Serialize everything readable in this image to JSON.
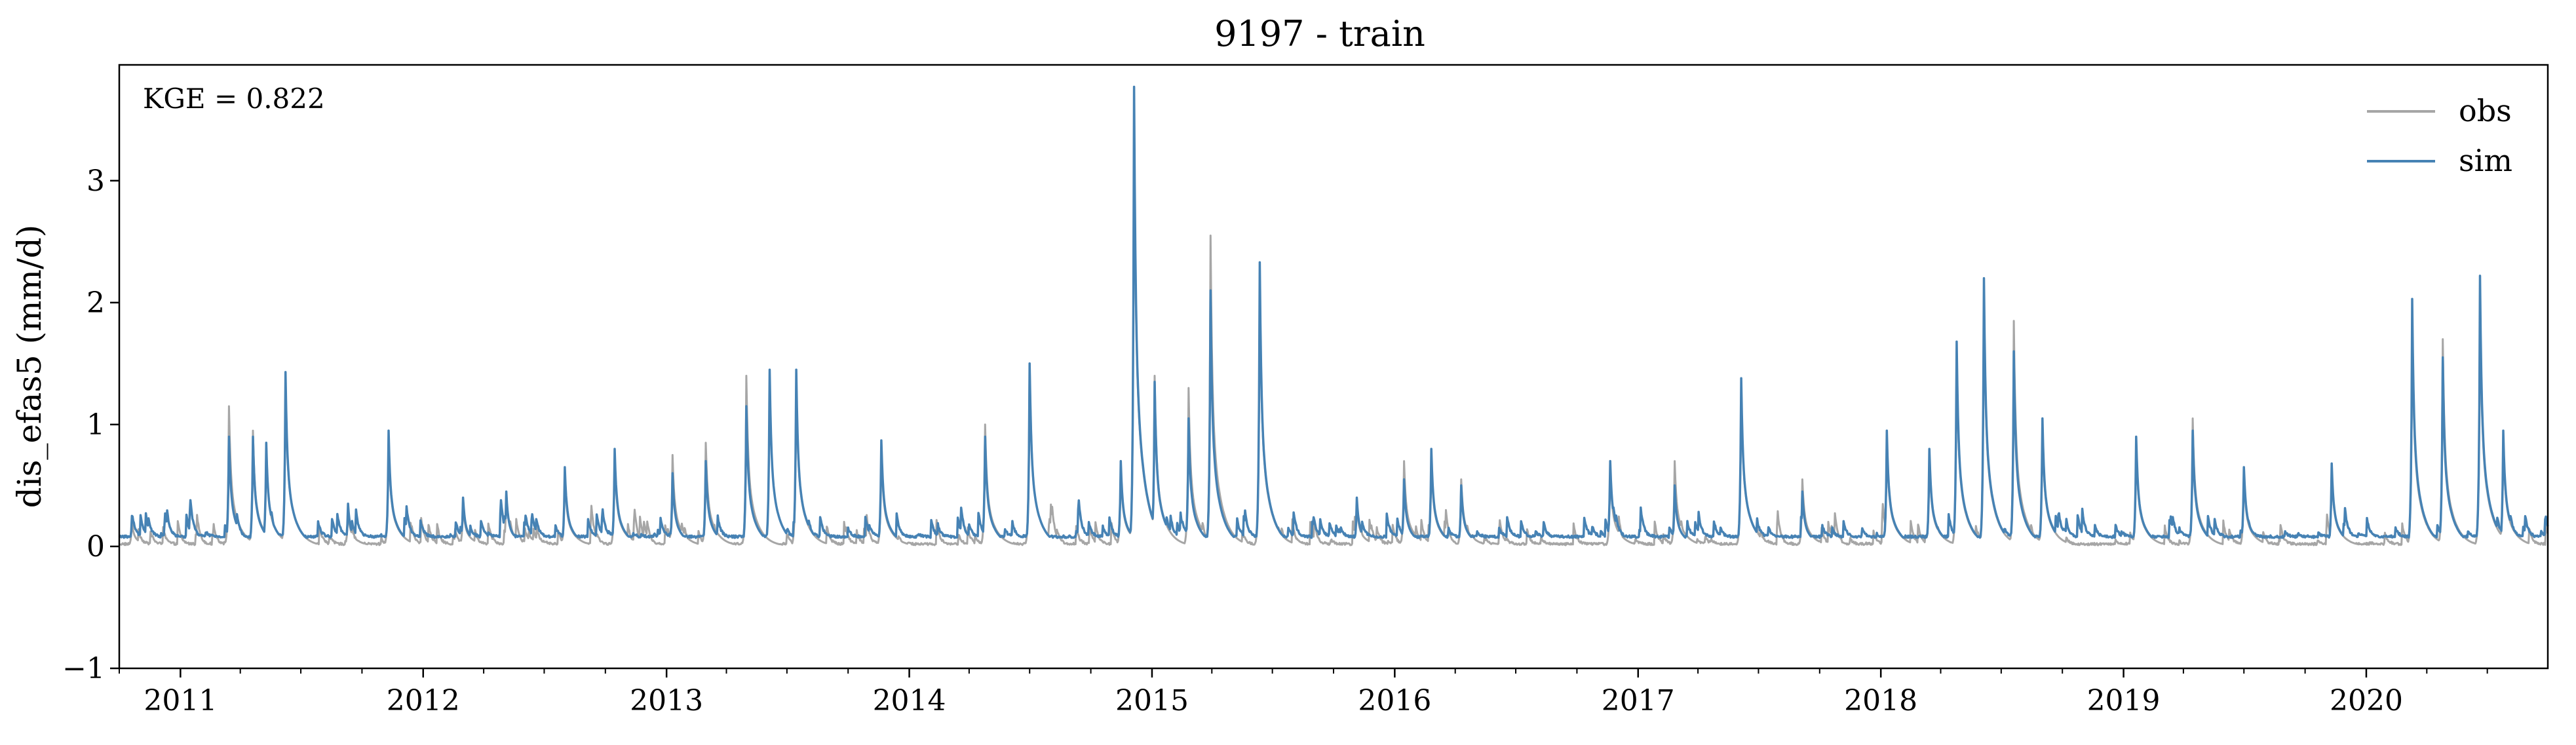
{
  "chart_data": {
    "type": "line",
    "title": "9197 - train",
    "xlabel": "",
    "ylabel": "dis_efas5 (mm/d)",
    "annotation": "KGE = 0.822",
    "xlim": [
      "2010-10-01",
      "2020-09-30"
    ],
    "ylim": [
      -1,
      3.95
    ],
    "yticks": [
      -1,
      0,
      1,
      2,
      3
    ],
    "ytick_labels": [
      "−1",
      "0",
      "1",
      "2",
      "3"
    ],
    "xticks": [
      "2011",
      "2012",
      "2013",
      "2014",
      "2015",
      "2016",
      "2017",
      "2018",
      "2019",
      "2020"
    ],
    "grid": false,
    "legend_position": "top-right",
    "series": [
      {
        "name": "obs",
        "color": "#a6a6a6",
        "baseline": 0.02,
        "peaks": [
          [
            "2010-10-20",
            0.2
          ],
          [
            "2011-03-15",
            1.15
          ],
          [
            "2011-04-20",
            0.95
          ],
          [
            "2011-05-10",
            0.85
          ],
          [
            "2011-06-08",
            1.4
          ],
          [
            "2011-09-10",
            0.3
          ],
          [
            "2011-11-10",
            0.9
          ],
          [
            "2012-03-01",
            0.35
          ],
          [
            "2012-05-05",
            0.45
          ],
          [
            "2012-08-01",
            0.6
          ],
          [
            "2012-10-15",
            0.75
          ],
          [
            "2013-01-10",
            0.75
          ],
          [
            "2013-03-01",
            0.85
          ],
          [
            "2013-05-01",
            1.4
          ],
          [
            "2013-07-15",
            1.4
          ],
          [
            "2013-11-20",
            0.8
          ],
          [
            "2014-04-25",
            1.0
          ],
          [
            "2014-07-01",
            1.5
          ],
          [
            "2014-11-15",
            0.65
          ],
          [
            "2014-12-05",
            3.65
          ],
          [
            "2015-01-05",
            1.4
          ],
          [
            "2015-02-25",
            1.3
          ],
          [
            "2015-03-30",
            2.55
          ],
          [
            "2015-06-12",
            2.25
          ],
          [
            "2015-11-05",
            0.35
          ],
          [
            "2016-01-15",
            0.7
          ],
          [
            "2016-02-25",
            0.75
          ],
          [
            "2016-04-10",
            0.55
          ],
          [
            "2016-11-20",
            0.65
          ],
          [
            "2017-02-25",
            0.7
          ],
          [
            "2017-06-05",
            1.35
          ],
          [
            "2017-09-05",
            0.55
          ],
          [
            "2018-01-10",
            0.9
          ],
          [
            "2018-03-15",
            0.75
          ],
          [
            "2018-04-25",
            1.6
          ],
          [
            "2018-06-05",
            2.1
          ],
          [
            "2018-07-20",
            1.85
          ],
          [
            "2018-09-01",
            1.0
          ],
          [
            "2019-01-20",
            0.85
          ],
          [
            "2019-04-15",
            1.05
          ],
          [
            "2019-07-01",
            0.6
          ],
          [
            "2019-11-10",
            0.65
          ],
          [
            "2020-03-10",
            1.9
          ],
          [
            "2020-04-25",
            1.7
          ],
          [
            "2020-06-20",
            2.1
          ],
          [
            "2020-07-25",
            0.9
          ]
        ]
      },
      {
        "name": "sim",
        "color": "#4682b4",
        "baseline": 0.08,
        "peaks": [
          [
            "2010-10-20",
            0.25
          ],
          [
            "2011-03-15",
            0.9
          ],
          [
            "2011-04-20",
            0.9
          ],
          [
            "2011-05-10",
            0.85
          ],
          [
            "2011-06-08",
            1.43
          ],
          [
            "2011-09-10",
            0.35
          ],
          [
            "2011-11-10",
            0.95
          ],
          [
            "2012-03-01",
            0.4
          ],
          [
            "2012-05-05",
            0.45
          ],
          [
            "2012-08-01",
            0.65
          ],
          [
            "2012-10-15",
            0.8
          ],
          [
            "2013-01-10",
            0.6
          ],
          [
            "2013-03-01",
            0.7
          ],
          [
            "2013-05-01",
            1.15
          ],
          [
            "2013-06-05",
            1.45
          ],
          [
            "2013-07-15",
            1.45
          ],
          [
            "2013-11-20",
            0.87
          ],
          [
            "2014-04-25",
            0.9
          ],
          [
            "2014-07-01",
            1.5
          ],
          [
            "2014-11-15",
            0.7
          ],
          [
            "2014-12-05",
            3.77
          ],
          [
            "2015-01-05",
            1.35
          ],
          [
            "2015-02-25",
            1.05
          ],
          [
            "2015-03-30",
            2.1
          ],
          [
            "2015-06-12",
            2.33
          ],
          [
            "2015-11-05",
            0.4
          ],
          [
            "2016-01-15",
            0.55
          ],
          [
            "2016-02-25",
            0.8
          ],
          [
            "2016-04-10",
            0.5
          ],
          [
            "2016-11-20",
            0.7
          ],
          [
            "2017-02-25",
            0.5
          ],
          [
            "2017-06-05",
            1.38
          ],
          [
            "2017-09-05",
            0.45
          ],
          [
            "2018-01-10",
            0.95
          ],
          [
            "2018-03-15",
            0.8
          ],
          [
            "2018-04-25",
            1.68
          ],
          [
            "2018-06-05",
            2.2
          ],
          [
            "2018-07-20",
            1.6
          ],
          [
            "2018-09-01",
            1.05
          ],
          [
            "2019-01-20",
            0.9
          ],
          [
            "2019-04-15",
            0.95
          ],
          [
            "2019-07-01",
            0.65
          ],
          [
            "2019-11-10",
            0.68
          ],
          [
            "2020-03-10",
            2.03
          ],
          [
            "2020-04-25",
            1.55
          ],
          [
            "2020-06-20",
            2.22
          ],
          [
            "2020-07-25",
            0.95
          ]
        ]
      }
    ]
  }
}
